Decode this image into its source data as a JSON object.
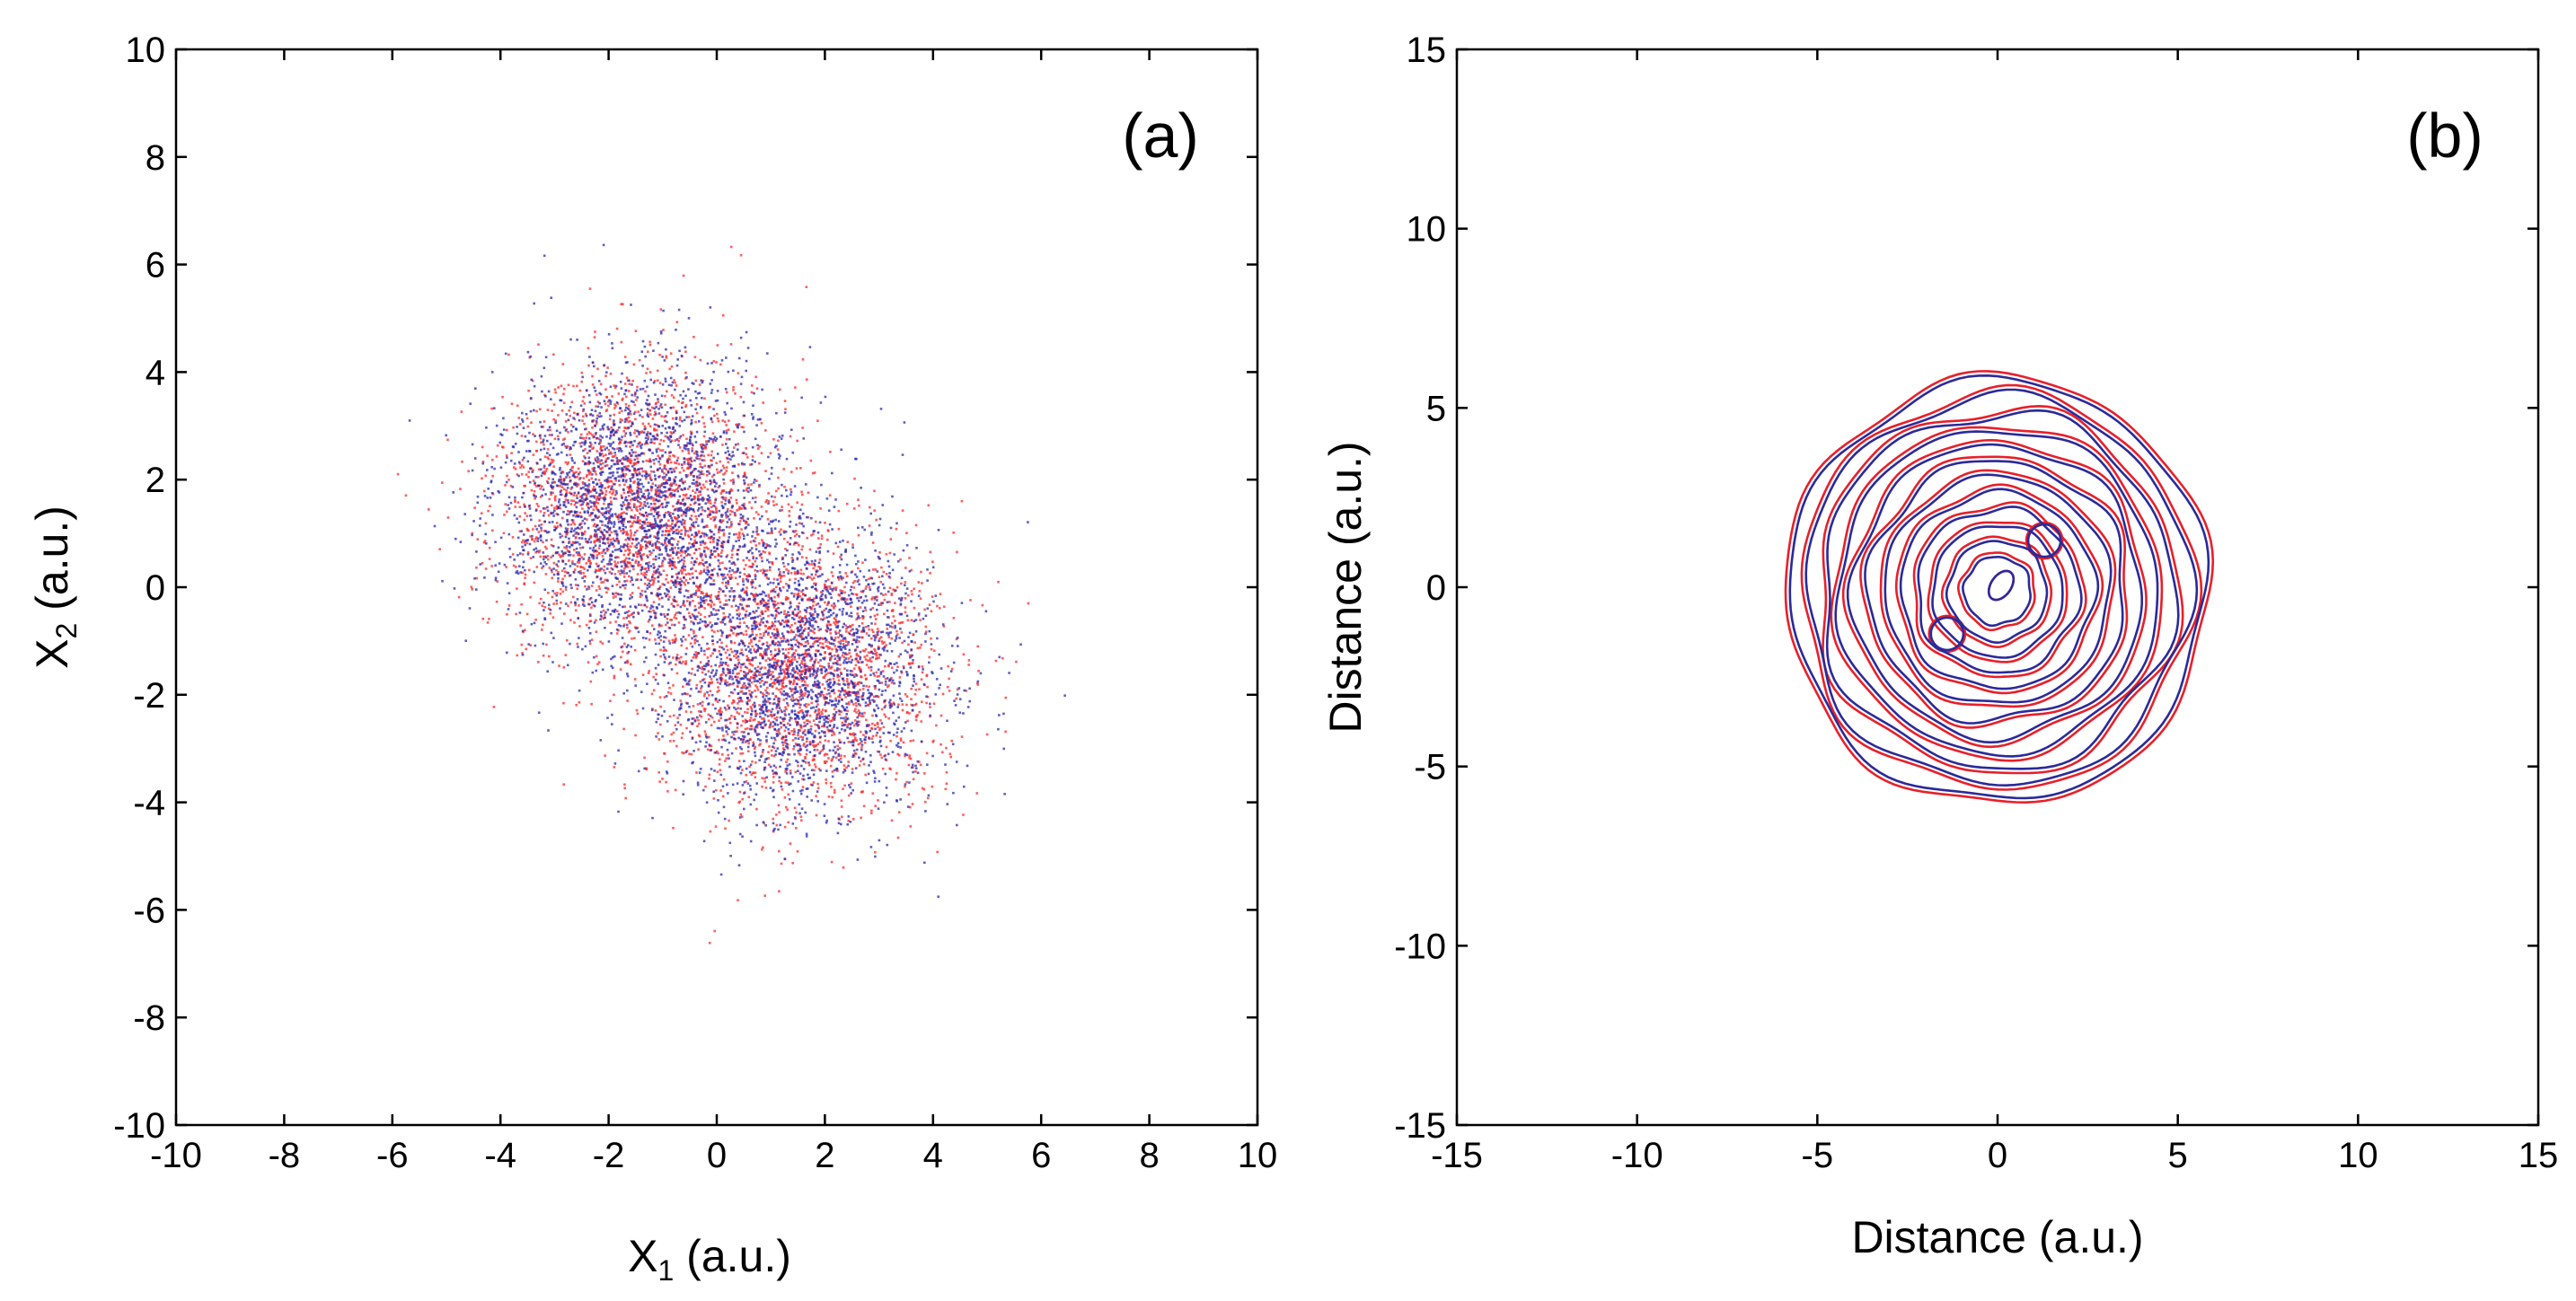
{
  "colors": {
    "series_red": "#ff2a2a",
    "series_blue": "#2a2ab0",
    "contour_red": "#e8202a",
    "contour_blue": "#2a2a9a",
    "axis": "#000000"
  },
  "chart_data": [
    {
      "type": "scatter",
      "panel_label": "(a)",
      "xlabel": "X",
      "xlabel_sub": "1",
      "xlabel_unit": " (a.u.)",
      "ylabel": "X",
      "ylabel_sub": "2",
      "ylabel_unit": " (a.u.)",
      "xlim": [
        -10,
        10
      ],
      "ylim": [
        -10,
        10
      ],
      "xticks": [
        -10,
        -8,
        -6,
        -4,
        -2,
        0,
        2,
        4,
        6,
        8,
        10
      ],
      "yticks": [
        -10,
        -8,
        -6,
        -4,
        -2,
        0,
        2,
        4,
        6,
        8,
        10
      ],
      "grid": false,
      "series": [
        {
          "color": "red",
          "clusters": [
            {
              "center": [
                -1.5,
                1.5
              ],
              "spread": 1.3,
              "weight": 0.5
            },
            {
              "center": [
                1.5,
                -1.5
              ],
              "spread": 1.3,
              "weight": 0.5
            }
          ]
        },
        {
          "color": "blue",
          "clusters": [
            {
              "center": [
                -1.5,
                1.5
              ],
              "spread": 1.3,
              "weight": 0.5
            },
            {
              "center": [
                1.5,
                -1.5
              ],
              "spread": 1.3,
              "weight": 0.5
            }
          ]
        }
      ]
    },
    {
      "type": "contour",
      "panel_label": "(b)",
      "xlabel": "Distance (a.u.)",
      "ylabel": "Distance (a.u.)",
      "xlim": [
        -15,
        15
      ],
      "ylim": [
        -15,
        15
      ],
      "xticks": [
        -15,
        -10,
        -5,
        0,
        5,
        10,
        15
      ],
      "yticks": [
        -15,
        -10,
        -5,
        0,
        5,
        10,
        15
      ],
      "grid": false,
      "centers": [
        [
          -1.4,
          -1.3
        ],
        [
          1.3,
          1.3
        ]
      ],
      "inner_ellipse": {
        "center": [
          0.1,
          0.05
        ],
        "rx": 0.28,
        "ry": 0.45
      },
      "outermost_extent": {
        "x": [
          -5.8,
          5.8
        ],
        "y": [
          -6.0,
          5.8
        ]
      },
      "levels": 12,
      "series": [
        {
          "color": "red"
        },
        {
          "color": "blue"
        }
      ]
    }
  ]
}
